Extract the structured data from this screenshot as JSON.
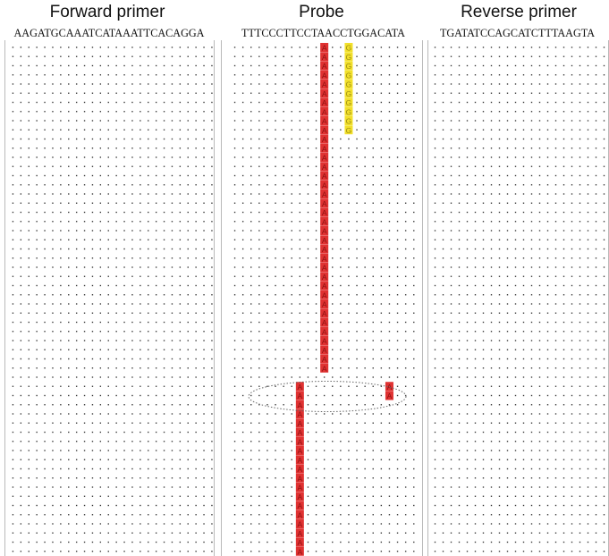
{
  "panels": [
    {
      "title": "Forward primer",
      "sequence": "AAGATGCAAATCATAAATTCACAGGA",
      "rows": 56,
      "highlights": []
    },
    {
      "title": "Probe",
      "sequence": "TTTCCCTTCCTAACCTGGACATA",
      "rows": 56,
      "highlights": [
        {
          "letter": "A",
          "color": "#e03232",
          "column": 11,
          "rows": [
            0,
            36
          ]
        },
        {
          "letter": "G",
          "color": "#f2e02a",
          "column": 14,
          "rows": [
            0,
            10
          ]
        },
        {
          "letter": "A",
          "color": "#e03232",
          "column": 8,
          "rows": [
            37,
            56
          ]
        },
        {
          "letter": "A",
          "color": "#e03232",
          "column": 19,
          "rows": [
            37,
            39
          ]
        }
      ],
      "annotation": {
        "shape": "dotted-ellipse",
        "rows": [
          37,
          39
        ]
      }
    },
    {
      "title": "Reverse primer",
      "sequence": "TGATATCCAGCATCTTTAAGTA",
      "rows": 56,
      "highlights": []
    }
  ],
  "colors": {
    "mismatch_a": "#e03232",
    "mismatch_g": "#f2e02a",
    "dot": "#3a3a3a",
    "border": "#b9b9b9"
  }
}
